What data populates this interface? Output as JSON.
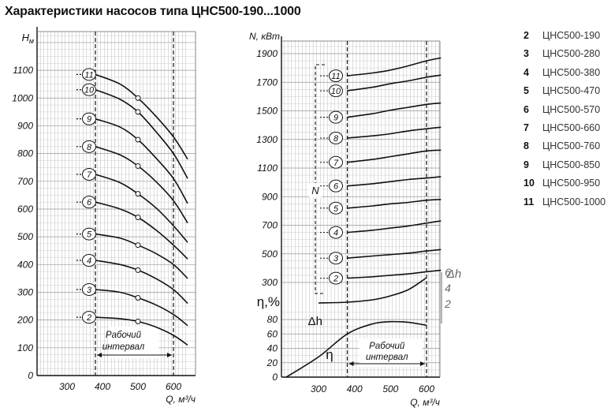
{
  "title": "Характеристики насосов типа ЦНС500-190...1000",
  "legend": [
    {
      "num": "2",
      "name": "ЦНС500-190"
    },
    {
      "num": "3",
      "name": "ЦНС500-280"
    },
    {
      "num": "4",
      "name": "ЦНС500-380"
    },
    {
      "num": "5",
      "name": "ЦНС500-470"
    },
    {
      "num": "6",
      "name": "ЦНС500-570"
    },
    {
      "num": "7",
      "name": "ЦНС500-660"
    },
    {
      "num": "8",
      "name": "ЦНС500-760"
    },
    {
      "num": "9",
      "name": "ЦНС500-850"
    },
    {
      "num": "10",
      "name": "ЦНС500-950"
    },
    {
      "num": "11",
      "name": "ЦНС500-1000"
    }
  ],
  "chart_data": [
    {
      "type": "line",
      "ylabel_main": "H",
      "ylabel_sub": "м",
      "xlabel": "Q, м³/ч",
      "xticks": [
        "300",
        "400",
        "500",
        "600"
      ],
      "xlim": [
        200,
        650
      ],
      "ylim": [
        0,
        1160
      ],
      "yticks": [
        "0",
        "100",
        "200",
        "300",
        "400",
        "500",
        "600",
        "700",
        "800",
        "900",
        "1000",
        "1100"
      ],
      "interval_label_1": "Рабочий",
      "interval_label_2": "интервал",
      "interval": [
        380,
        600
      ],
      "series": [
        {
          "name": "11",
          "x": [
            380,
            450,
            500,
            550,
            600,
            640
          ],
          "y": [
            1085,
            1050,
            1000,
            935,
            860,
            780
          ]
        },
        {
          "name": "10",
          "x": [
            380,
            450,
            500,
            550,
            600,
            640
          ],
          "y": [
            1030,
            995,
            950,
            880,
            800,
            710
          ]
        },
        {
          "name": "9",
          "x": [
            380,
            450,
            500,
            550,
            600,
            640
          ],
          "y": [
            925,
            895,
            850,
            785,
            710,
            620
          ]
        },
        {
          "name": "8",
          "x": [
            380,
            450,
            500,
            550,
            600,
            640
          ],
          "y": [
            825,
            795,
            755,
            700,
            630,
            550
          ]
        },
        {
          "name": "7",
          "x": [
            380,
            450,
            500,
            550,
            600,
            640
          ],
          "y": [
            725,
            695,
            655,
            605,
            540,
            480
          ]
        },
        {
          "name": "6",
          "x": [
            380,
            450,
            500,
            550,
            600,
            640
          ],
          "y": [
            625,
            600,
            570,
            525,
            470,
            420
          ]
        },
        {
          "name": "5",
          "x": [
            380,
            450,
            500,
            550,
            600,
            640
          ],
          "y": [
            510,
            495,
            470,
            440,
            400,
            350
          ]
        },
        {
          "name": "4",
          "x": [
            380,
            450,
            500,
            550,
            600,
            640
          ],
          "y": [
            415,
            400,
            380,
            350,
            310,
            260
          ]
        },
        {
          "name": "3",
          "x": [
            380,
            450,
            500,
            550,
            600,
            640
          ],
          "y": [
            310,
            300,
            280,
            255,
            220,
            180
          ]
        },
        {
          "name": "2",
          "x": [
            380,
            450,
            500,
            550,
            600,
            640
          ],
          "y": [
            210,
            205,
            195,
            175,
            145,
            110
          ]
        }
      ],
      "markers_x": 500
    },
    {
      "type": "line",
      "ylabel": "N, кВт",
      "xlabel": "Q, м³/ч",
      "xticks": [
        "300",
        "400",
        "500",
        "600"
      ],
      "xlim": [
        200,
        650
      ],
      "n_yticks": [
        "300",
        "500",
        "700",
        "900",
        "1100",
        "1300",
        "1500",
        "1700",
        "1900"
      ],
      "eff_label": "η,%",
      "eff_yticks": [
        "0",
        "20",
        "40",
        "60",
        "80"
      ],
      "interval_label_1": "Рабочий",
      "interval_label_2": "интервал",
      "interval": [
        380,
        600
      ],
      "bracket_label": "N",
      "npsh_label": "Δh",
      "npsh_ticks": [
        "6",
        "4",
        "2"
      ],
      "eta_label": "η",
      "dh_label": "Δh",
      "power_series": [
        {
          "name": "11",
          "x": [
            380,
            450,
            500,
            550,
            600,
            640
          ],
          "y": [
            1745,
            1765,
            1785,
            1815,
            1850,
            1870
          ]
        },
        {
          "name": "10",
          "x": [
            380,
            450,
            500,
            550,
            600,
            640
          ],
          "y": [
            1640,
            1665,
            1690,
            1710,
            1735,
            1750
          ]
        },
        {
          "name": "9",
          "x": [
            380,
            450,
            500,
            550,
            600,
            640
          ],
          "y": [
            1455,
            1480,
            1505,
            1525,
            1545,
            1555
          ]
        },
        {
          "name": "8",
          "x": [
            380,
            450,
            500,
            550,
            600,
            640
          ],
          "y": [
            1310,
            1325,
            1340,
            1360,
            1375,
            1385
          ]
        },
        {
          "name": "7",
          "x": [
            380,
            450,
            500,
            550,
            600,
            640
          ],
          "y": [
            1140,
            1160,
            1180,
            1200,
            1220,
            1225
          ]
        },
        {
          "name": "6",
          "x": [
            380,
            450,
            500,
            550,
            600,
            640
          ],
          "y": [
            975,
            990,
            1005,
            1020,
            1030,
            1040
          ]
        },
        {
          "name": "5",
          "x": [
            380,
            450,
            500,
            550,
            600,
            640
          ],
          "y": [
            820,
            835,
            850,
            860,
            875,
            880
          ]
        },
        {
          "name": "4",
          "x": [
            380,
            450,
            500,
            550,
            600,
            640
          ],
          "y": [
            650,
            665,
            680,
            695,
            715,
            730
          ]
        },
        {
          "name": "3",
          "x": [
            380,
            450,
            500,
            550,
            600,
            640
          ],
          "y": [
            470,
            485,
            495,
            505,
            520,
            530
          ]
        },
        {
          "name": "2",
          "x": [
            380,
            450,
            500,
            550,
            600,
            640
          ],
          "y": [
            330,
            340,
            350,
            360,
            375,
            385
          ]
        }
      ],
      "efficiency": {
        "x": [
          210,
          300,
          380,
          450,
          500,
          550,
          600
        ],
        "y": [
          0,
          28,
          60,
          74,
          77,
          76,
          72
        ]
      },
      "npsh": {
        "x": [
          300,
          380,
          450,
          500,
          550,
          600
        ],
        "y": [
          2.1,
          2.2,
          2.5,
          3.0,
          3.8,
          5.3
        ]
      }
    }
  ]
}
